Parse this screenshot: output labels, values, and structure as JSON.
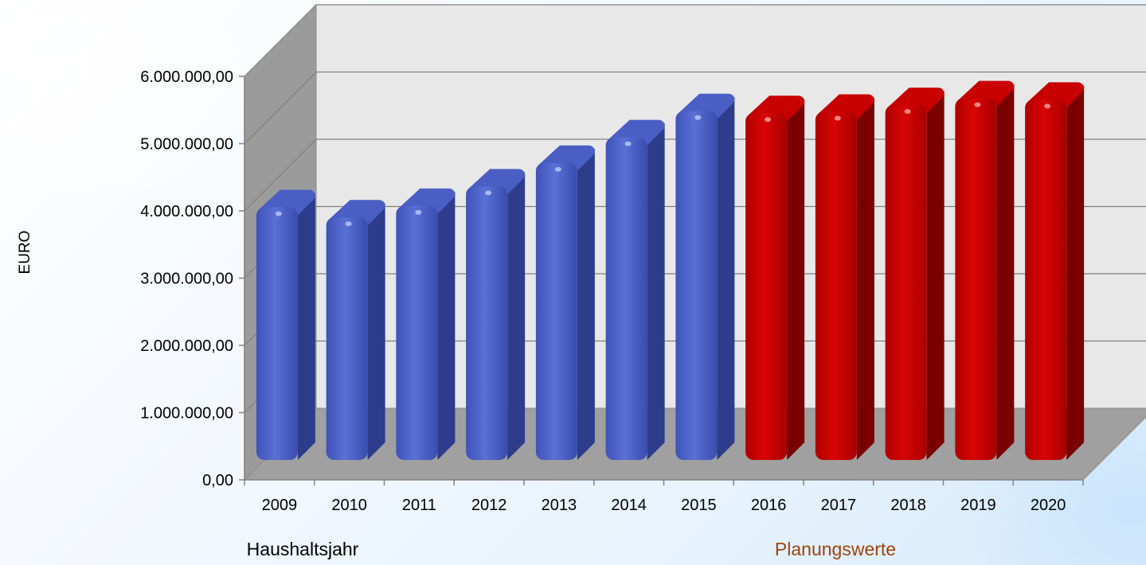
{
  "chart_data": {
    "type": "bar",
    "categories": [
      "2009",
      "2010",
      "2011",
      "2012",
      "2013",
      "2014",
      "2015",
      "2016",
      "2017",
      "2018",
      "2019",
      "2020"
    ],
    "values": [
      4100000,
      3950000,
      4120000,
      4410000,
      4760000,
      5140000,
      5530000,
      5500000,
      5520000,
      5620000,
      5720000,
      5700000
    ],
    "bar_colors": [
      "#4f63c8",
      "#4f63c8",
      "#4f63c8",
      "#4f63c8",
      "#4f63c8",
      "#4f63c8",
      "#4f63c8",
      "#cc0000",
      "#cc0000",
      "#cc0000",
      "#cc0000",
      "#cc0000"
    ],
    "ylabel": "EURO",
    "ylim": [
      0,
      6000000
    ],
    "yticks": [
      "0,00",
      "1.000.000,00",
      "2.000.000,00",
      "3.000.000,00",
      "4.000.000,00",
      "5.000.000,00",
      "6.000.000,00"
    ],
    "grid": true,
    "style": "3d",
    "actual_label": "Haushaltsjahr",
    "planning_label": "Planungswerte",
    "planning_color": "#a0430a"
  }
}
